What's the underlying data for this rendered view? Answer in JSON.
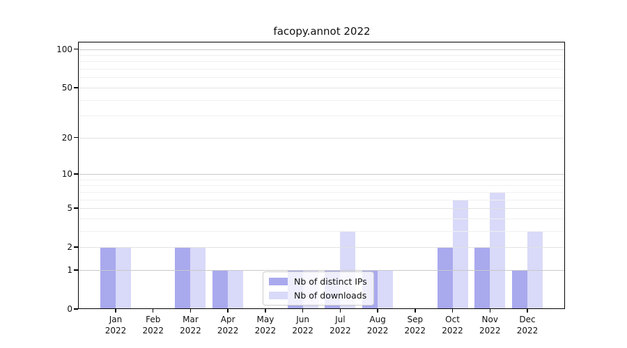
{
  "chart_data": {
    "type": "bar",
    "title": "facopy.annot 2022",
    "categories": [
      "Jan 2022",
      "Feb 2022",
      "Mar 2022",
      "Apr 2022",
      "May 2022",
      "Jun 2022",
      "Jul 2022",
      "Aug 2022",
      "Sep 2022",
      "Oct 2022",
      "Nov 2022",
      "Dec 2022"
    ],
    "series": [
      {
        "name": "Nb of distinct IPs",
        "color": "#a9a9ee",
        "values": [
          2,
          0,
          2,
          1,
          0,
          1,
          1,
          1,
          0,
          2,
          2,
          1
        ]
      },
      {
        "name": "Nb of downloads",
        "color": "#d9d9f9",
        "values": [
          2,
          0,
          2,
          1,
          0,
          1,
          3,
          1,
          0,
          6,
          7,
          3
        ]
      }
    ],
    "yscale": "log10(1+x)",
    "yticks": [
      0,
      1,
      2,
      5,
      10,
      20,
      50,
      100
    ],
    "ylim": [
      0,
      114
    ],
    "xlabel": "",
    "ylabel": "",
    "grid": "both",
    "legend_position": "lower center"
  }
}
